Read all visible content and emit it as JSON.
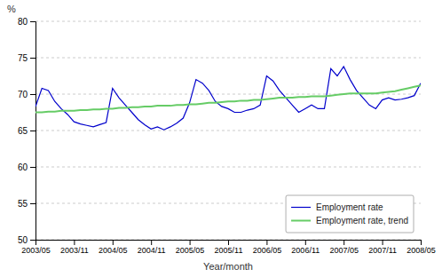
{
  "chart_data": {
    "type": "line",
    "xlabel": "Year/month",
    "ylabel": "%",
    "categories": [
      "2003/05",
      null,
      null,
      null,
      null,
      null,
      "2003/11",
      null,
      null,
      null,
      null,
      null,
      "2004/05",
      null,
      null,
      null,
      null,
      null,
      "2004/11",
      null,
      null,
      null,
      null,
      null,
      "2005/05",
      null,
      null,
      null,
      null,
      null,
      "2005/11",
      null,
      null,
      null,
      null,
      null,
      "2006/05",
      null,
      null,
      null,
      null,
      null,
      "2006/11",
      null,
      null,
      null,
      null,
      null,
      "2007/05",
      null,
      null,
      null,
      null,
      null,
      "2007/11",
      null,
      null,
      null,
      null,
      null,
      "2008/05"
    ],
    "series": [
      {
        "name": "Employment rate",
        "color": "#0000cc",
        "values": [
          68.3,
          70.8,
          70.5,
          69.0,
          68.0,
          67.2,
          66.2,
          65.9,
          65.7,
          65.5,
          65.8,
          66.1,
          70.8,
          69.5,
          68.5,
          67.5,
          66.5,
          65.8,
          65.2,
          65.5,
          65.1,
          65.5,
          66.0,
          66.7,
          68.8,
          72.0,
          71.5,
          70.5,
          69.0,
          68.3,
          68.0,
          67.5,
          67.5,
          67.8,
          68.0,
          68.5,
          72.5,
          71.8,
          70.5,
          69.5,
          68.5,
          67.5,
          68.0,
          68.5,
          68.0,
          68.0,
          73.5,
          72.5,
          73.8,
          72.0,
          70.5,
          69.5,
          68.5,
          68.0,
          69.2,
          69.5,
          69.2,
          69.3,
          69.5,
          69.8,
          71.5
        ]
      },
      {
        "name": "Employment rate, trend",
        "color": "#66cc66",
        "values": [
          67.5,
          67.5,
          67.6,
          67.6,
          67.7,
          67.7,
          67.7,
          67.8,
          67.8,
          67.9,
          67.9,
          68.0,
          68.0,
          68.1,
          68.1,
          68.2,
          68.2,
          68.3,
          68.3,
          68.4,
          68.4,
          68.4,
          68.5,
          68.5,
          68.6,
          68.6,
          68.7,
          68.8,
          68.8,
          68.9,
          69.0,
          69.0,
          69.1,
          69.1,
          69.2,
          69.2,
          69.3,
          69.4,
          69.5,
          69.5,
          69.5,
          69.6,
          69.6,
          69.7,
          69.7,
          69.7,
          69.8,
          69.9,
          70.0,
          70.1,
          70.1,
          70.1,
          70.1,
          70.1,
          70.2,
          70.3,
          70.4,
          70.6,
          70.8,
          71.0,
          71.2
        ]
      }
    ],
    "ylim": [
      50,
      80
    ],
    "yticks": [
      50,
      55,
      60,
      65,
      70,
      75,
      80
    ],
    "grid": true,
    "legend": "lower right"
  }
}
